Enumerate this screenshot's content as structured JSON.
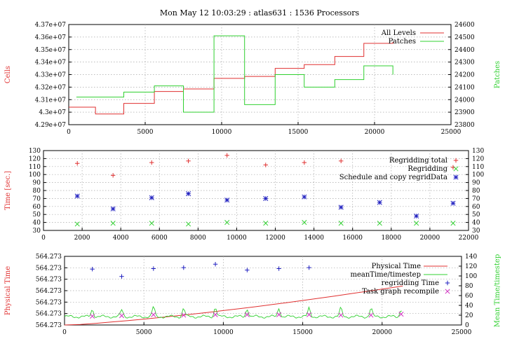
{
  "title": "Mon May 12 10:03:29 : atlas631 : 1536 Processors",
  "colors": {
    "red": "#e03030",
    "green": "#30d030",
    "blue": "#2020c0",
    "magenta": "#d030c0",
    "grid": "#a8a8a8"
  },
  "chart_data": [
    {
      "type": "line",
      "name": "cells-patches",
      "xlim": [
        0,
        25000
      ],
      "ylim": [
        42900000.0,
        43700000.0
      ],
      "y2lim": [
        23800,
        24600
      ],
      "xticks": [
        "0",
        "5000",
        "10000",
        "15000",
        "20000",
        "25000"
      ],
      "yticks": [
        "4.37e+07",
        "4.36e+07",
        "4.35e+07",
        "4.34e+07",
        "4.33e+07",
        "4.32e+07",
        "4.31e+07",
        "4.3e+07",
        "4.29e+07"
      ],
      "y2ticks": [
        "24600",
        "24500",
        "24400",
        "24300",
        "24200",
        "24100",
        "24000",
        "23900",
        "23800"
      ],
      "ylabel": "Cells",
      "y2label": "Patches",
      "legend": "top-right",
      "grid": true,
      "series": [
        {
          "name": "All Levels",
          "axis": "y",
          "step": true,
          "x": [
            0,
            1750,
            3600,
            5600,
            7500,
            9500,
            11500,
            13500,
            15400,
            17400,
            19300,
            21200
          ],
          "values": [
            43040000,
            42985000,
            43070000,
            43165000,
            43185000,
            43270000,
            43285000,
            43350000,
            43380000,
            43445000,
            43550000,
            43560000
          ]
        },
        {
          "name": "Patches",
          "axis": "y2",
          "step": true,
          "x": [
            500,
            3600,
            5600,
            7500,
            9500,
            11500,
            13500,
            15400,
            17400,
            19300,
            21200
          ],
          "values": [
            24020,
            24060,
            24110,
            23900,
            24510,
            23960,
            24200,
            24100,
            24160,
            24270,
            24200
          ]
        }
      ]
    },
    {
      "type": "scatter",
      "name": "time",
      "xlim": [
        0,
        22000
      ],
      "ylim": [
        30,
        130
      ],
      "xticks": [
        "0",
        "2000",
        "4000",
        "6000",
        "8000",
        "10000",
        "12000",
        "14000",
        "16000",
        "18000",
        "20000",
        "22000"
      ],
      "yticks": [
        "130",
        "120",
        "110",
        "100",
        "90",
        "80",
        "70",
        "60",
        "50",
        "40",
        "30"
      ],
      "y2ticks": [
        "130",
        "120",
        "110",
        "100",
        "90",
        "80",
        "70",
        "60",
        "50",
        "40",
        "30"
      ],
      "ylabel": "Time [sec.]",
      "legend": "top-right",
      "grid": true,
      "series": [
        {
          "name": "Regridding total",
          "x": [
            1750,
            3600,
            5600,
            7500,
            9500,
            11500,
            13500,
            15400,
            21200
          ],
          "values": [
            114,
            99,
            115,
            117,
            124,
            112,
            115,
            117,
            109
          ]
        },
        {
          "name": "Regridding",
          "x": [
            1750,
            3600,
            5600,
            7500,
            9500,
            11500,
            13500,
            15400,
            17400,
            19300,
            21200
          ],
          "values": [
            38,
            39,
            39,
            38,
            40,
            39,
            40,
            39,
            39,
            39,
            39
          ]
        },
        {
          "name": "Schedule and copy regridData",
          "x": [
            1750,
            3600,
            5600,
            7500,
            9500,
            11500,
            13500,
            15400,
            17400,
            19300,
            21200
          ],
          "values": [
            73,
            57,
            71,
            76,
            68,
            70,
            72,
            59,
            65,
            48,
            64
          ]
        }
      ]
    },
    {
      "type": "line",
      "name": "physical-time",
      "xlim": [
        0,
        25000
      ],
      "ylim": [
        0,
        7
      ],
      "y2lim": [
        0,
        140
      ],
      "xticks": [
        "0",
        "5000",
        "10000",
        "15000",
        "20000",
        "25000"
      ],
      "yticks": [
        "564.273",
        "564.273",
        "564.273",
        "564.273",
        "564.273",
        "564.273",
        "564.273"
      ],
      "y2ticks": [
        "140",
        "120",
        "100",
        "80",
        "60",
        "40",
        "20",
        "0"
      ],
      "ylabel": "Physical Time",
      "y2label": "Mean Time/timestep",
      "legend": "top-right",
      "grid": true,
      "series": [
        {
          "name": "Physical Time",
          "axis": "y",
          "x": [
            0,
            1000,
            2000,
            3000,
            4000,
            5000,
            6000,
            7000,
            8000,
            9000,
            10000,
            11000,
            12000,
            13000,
            14000,
            15000,
            16000,
            17000,
            18000,
            19000,
            20000,
            21000,
            21300
          ],
          "values": [
            0,
            0.05,
            0.17,
            0.31,
            0.45,
            0.6,
            0.76,
            0.93,
            1.1,
            1.28,
            1.47,
            1.66,
            1.86,
            2.07,
            2.28,
            2.5,
            2.72,
            2.95,
            3.19,
            3.42,
            3.66,
            3.9,
            3.97
          ]
        },
        {
          "name": "meanTime/timestep",
          "axis": "y2",
          "spiky": true,
          "base": 17,
          "spikes_x": [
            1750,
            3600,
            5600,
            7500,
            9500,
            11500,
            13500,
            15400,
            17400,
            19300,
            21200
          ],
          "spikes_y": [
            32,
            31,
            37,
            34,
            37,
            34,
            35,
            34,
            34,
            34,
            33
          ]
        },
        {
          "name": "regridding Time",
          "axis": "y2",
          "x": [
            1750,
            3600,
            5600,
            7500,
            9500,
            11500,
            13500,
            15400
          ],
          "values": [
            114,
            99,
            115,
            117,
            124,
            112,
            115,
            117
          ]
        },
        {
          "name": "Task graph recompile",
          "axis": "y2",
          "x": [
            1750,
            3600,
            5600,
            7500,
            9500,
            11500,
            13500,
            15400,
            17400,
            19300,
            21200
          ],
          "values": [
            18,
            19,
            21,
            20,
            21,
            21,
            21,
            21,
            20,
            20,
            22
          ]
        }
      ]
    }
  ]
}
